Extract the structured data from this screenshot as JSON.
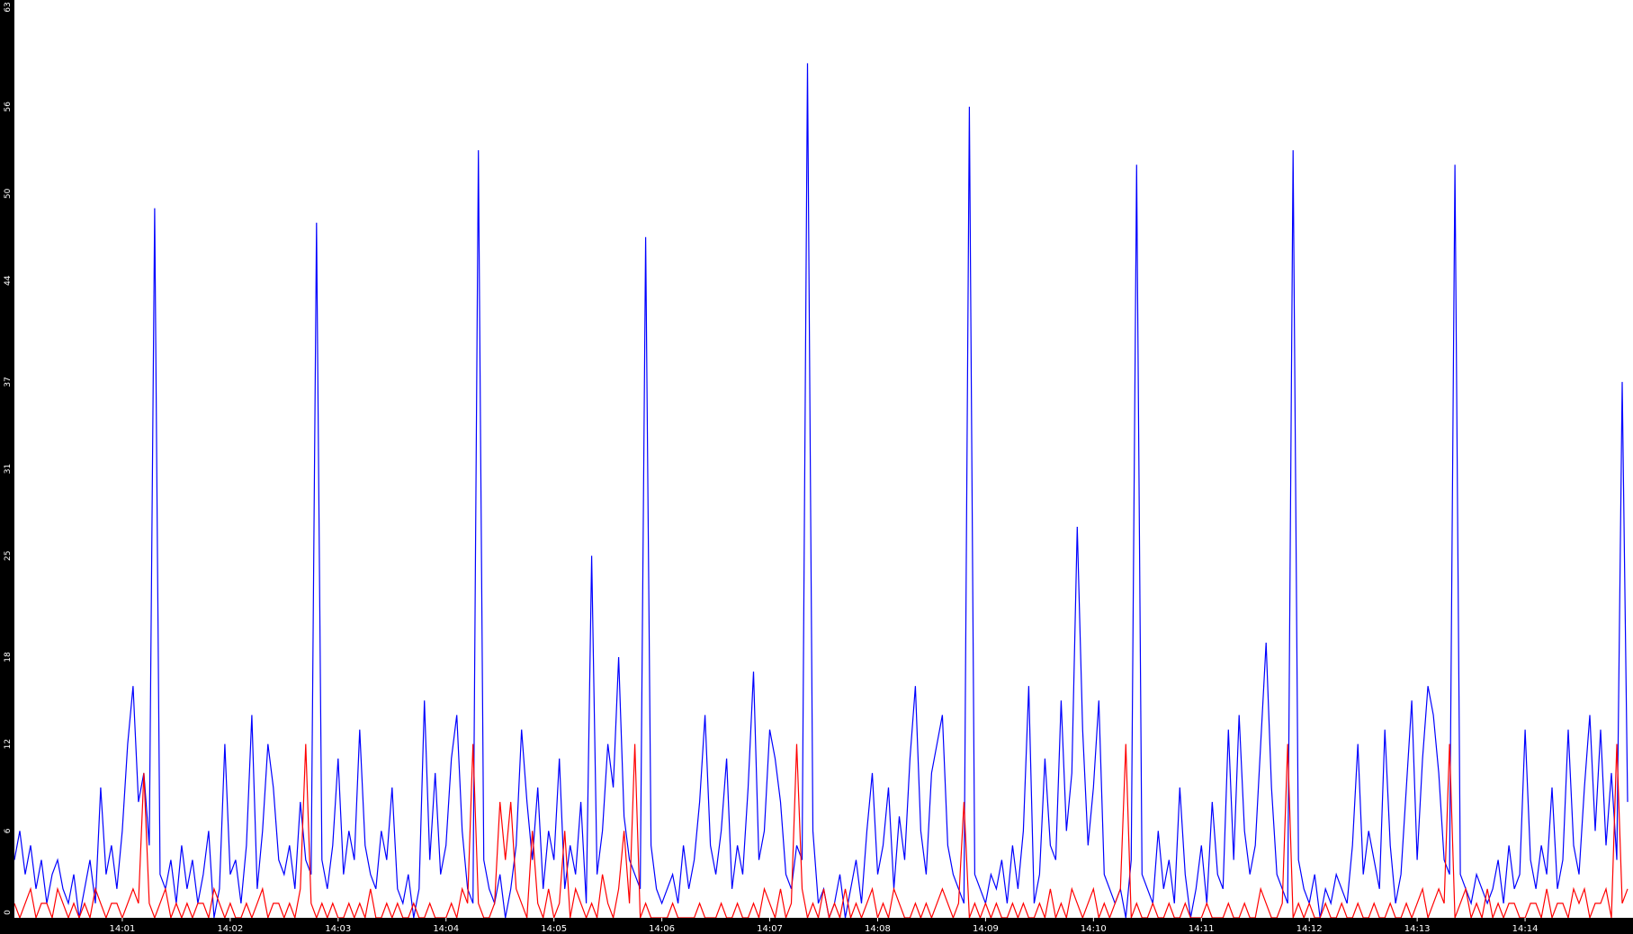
{
  "chart_data": {
    "type": "line",
    "title": "",
    "xlabel": "",
    "ylabel": "",
    "x_start": "14:00:00",
    "x_step_seconds": 3,
    "x_ticks": [
      "14:01",
      "14:02",
      "14:03",
      "14:04",
      "14:05",
      "14:06",
      "14:07",
      "14:08",
      "14:09",
      "14:10",
      "14:11",
      "14:12",
      "14:13",
      "14:14"
    ],
    "y_ticks": [
      0,
      6,
      12,
      18,
      25,
      31,
      37,
      44,
      50,
      56,
      63
    ],
    "ylim": [
      0,
      63
    ],
    "xlim": [
      "14:00:00",
      "14:15:00"
    ],
    "grid": false,
    "colors": {
      "background": "#ffffff",
      "axis_band": "#000000",
      "axis_text": "#ffffff"
    },
    "series": [
      {
        "color": "#0000ff",
        "values": [
          4,
          6,
          3,
          5,
          2,
          4,
          1,
          3,
          4,
          2,
          1,
          3,
          0,
          2,
          4,
          1,
          9,
          3,
          5,
          2,
          6,
          12,
          16,
          8,
          10,
          5,
          49,
          3,
          2,
          4,
          1,
          5,
          2,
          4,
          1,
          3,
          6,
          0,
          2,
          12,
          3,
          4,
          1,
          5,
          14,
          2,
          6,
          12,
          9,
          4,
          3,
          5,
          2,
          8,
          4,
          3,
          48,
          4,
          2,
          5,
          11,
          3,
          6,
          4,
          13,
          5,
          3,
          2,
          6,
          4,
          9,
          2,
          1,
          3,
          0,
          2,
          15,
          4,
          10,
          3,
          5,
          11,
          14,
          6,
          2,
          1,
          53,
          4,
          2,
          1,
          3,
          0,
          2,
          5,
          13,
          8,
          4,
          9,
          2,
          6,
          4,
          11,
          2,
          5,
          3,
          8,
          1,
          25,
          3,
          6,
          12,
          9,
          18,
          7,
          4,
          3,
          2,
          47,
          5,
          2,
          1,
          2,
          3,
          1,
          5,
          2,
          4,
          8,
          14,
          5,
          3,
          6,
          11,
          2,
          5,
          3,
          9,
          17,
          4,
          6,
          13,
          11,
          8,
          3,
          2,
          5,
          4,
          59,
          6,
          1,
          2,
          0,
          1,
          3,
          0,
          2,
          4,
          1,
          6,
          10,
          3,
          5,
          9,
          2,
          7,
          4,
          11,
          16,
          6,
          3,
          10,
          12,
          14,
          5,
          3,
          2,
          1,
          56,
          3,
          2,
          1,
          3,
          2,
          4,
          1,
          5,
          2,
          6,
          16,
          1,
          3,
          11,
          5,
          4,
          15,
          6,
          10,
          27,
          13,
          5,
          9,
          15,
          3,
          2,
          1,
          2,
          0,
          4,
          52,
          3,
          2,
          1,
          6,
          2,
          4,
          1,
          9,
          3,
          0,
          2,
          5,
          1,
          8,
          3,
          2,
          13,
          4,
          14,
          6,
          3,
          5,
          12,
          19,
          9,
          3,
          2,
          1,
          53,
          4,
          2,
          1,
          3,
          0,
          2,
          1,
          3,
          2,
          1,
          5,
          12,
          3,
          6,
          4,
          2,
          13,
          5,
          1,
          3,
          9,
          15,
          4,
          11,
          16,
          14,
          10,
          4,
          3,
          52,
          3,
          2,
          1,
          3,
          2,
          1,
          2,
          4,
          1,
          5,
          2,
          3,
          13,
          4,
          2,
          5,
          3,
          9,
          2,
          4,
          13,
          5,
          3,
          9,
          14,
          6,
          13,
          5,
          10,
          4,
          37,
          8
        ]
      },
      {
        "color": "#ff0000",
        "values": [
          1,
          0,
          1,
          2,
          0,
          1,
          1,
          0,
          2,
          1,
          0,
          1,
          0,
          1,
          0,
          2,
          1,
          0,
          1,
          1,
          0,
          1,
          2,
          1,
          10,
          1,
          0,
          1,
          2,
          0,
          1,
          0,
          1,
          0,
          1,
          1,
          0,
          2,
          1,
          0,
          1,
          0,
          0,
          1,
          0,
          1,
          2,
          0,
          1,
          1,
          0,
          1,
          0,
          2,
          12,
          1,
          0,
          1,
          0,
          1,
          0,
          0,
          1,
          0,
          1,
          0,
          2,
          0,
          0,
          1,
          0,
          1,
          0,
          0,
          1,
          0,
          0,
          1,
          0,
          0,
          0,
          1,
          0,
          2,
          1,
          12,
          1,
          0,
          0,
          1,
          8,
          4,
          8,
          2,
          1,
          0,
          6,
          1,
          0,
          2,
          0,
          1,
          6,
          0,
          2,
          1,
          0,
          1,
          0,
          3,
          1,
          0,
          2,
          6,
          1,
          12,
          0,
          1,
          0,
          0,
          0,
          0,
          1,
          0,
          0,
          0,
          0,
          1,
          0,
          0,
          0,
          1,
          0,
          0,
          1,
          0,
          0,
          1,
          0,
          2,
          1,
          0,
          2,
          0,
          1,
          12,
          2,
          0,
          1,
          0,
          2,
          0,
          1,
          0,
          2,
          0,
          1,
          0,
          1,
          2,
          0,
          1,
          0,
          2,
          1,
          0,
          0,
          1,
          0,
          1,
          0,
          1,
          2,
          1,
          0,
          1,
          8,
          0,
          1,
          0,
          1,
          0,
          1,
          0,
          0,
          1,
          0,
          1,
          0,
          0,
          1,
          0,
          2,
          0,
          1,
          0,
          2,
          1,
          0,
          1,
          2,
          0,
          1,
          0,
          1,
          2,
          12,
          0,
          1,
          0,
          0,
          1,
          0,
          0,
          1,
          0,
          0,
          1,
          0,
          0,
          0,
          1,
          0,
          0,
          0,
          1,
          0,
          0,
          1,
          0,
          0,
          2,
          1,
          0,
          0,
          1,
          12,
          0,
          1,
          0,
          1,
          0,
          0,
          1,
          0,
          0,
          1,
          0,
          0,
          1,
          0,
          0,
          1,
          0,
          0,
          1,
          0,
          0,
          1,
          0,
          1,
          2,
          0,
          1,
          2,
          1,
          12,
          0,
          1,
          2,
          0,
          1,
          0,
          2,
          0,
          1,
          0,
          1,
          1,
          0,
          0,
          1,
          1,
          0,
          2,
          0,
          1,
          1,
          0,
          2,
          1,
          2,
          0,
          1,
          1,
          2,
          0,
          12,
          1,
          2
        ]
      }
    ]
  }
}
